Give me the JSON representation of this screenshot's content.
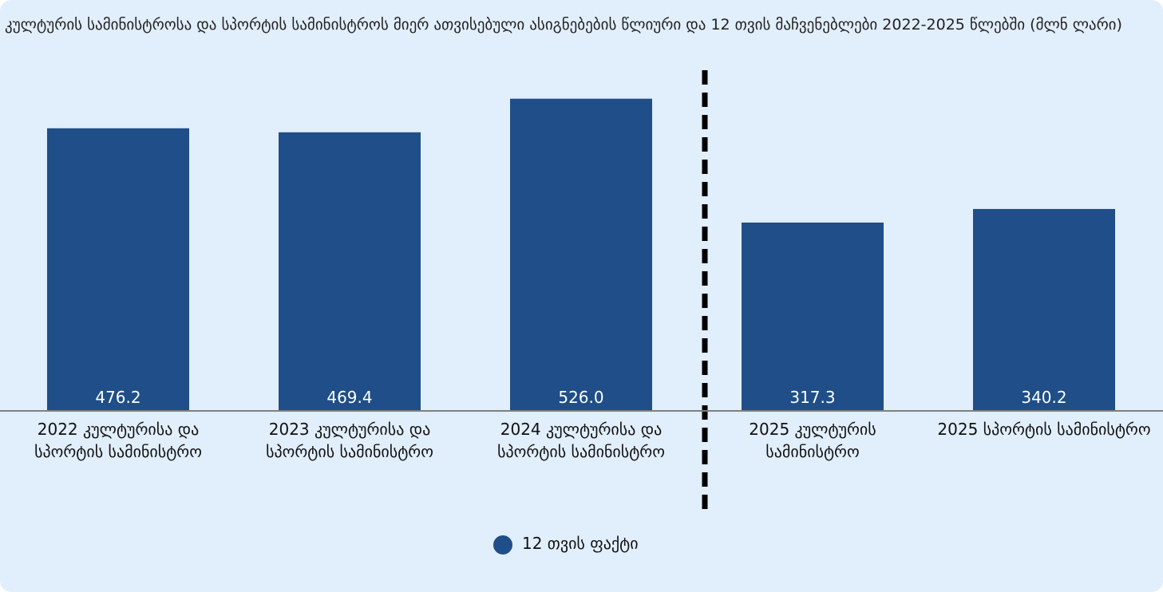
{
  "chart_data": {
    "type": "bar",
    "title": "კულტურის სამინისტროსა და სპორტის სამინისტროს მიერ ათვისებული ასიგნებების წლიური და 12 თვის მაჩვენებლები 2022-2025 წლებში (მლნ ლარი)",
    "categories": [
      "2022 კულტურისა და სპორტის სამინისტრო",
      "2023 კულტურისა და სპორტის სამინისტრო",
      "2024 კულტურისა და სპორტის სამინისტრო",
      "2025 კულტურის სამინისტრო",
      "2025 სპორტის სამინისტრო"
    ],
    "series": [
      {
        "name": "12 თვის ფაქტი",
        "color": "#1f4e89",
        "values": [
          476.2,
          469.4,
          526,
          317.3,
          340.2
        ],
        "value_labels": [
          "476.2",
          "469.4",
          "526.0",
          "317.3",
          "340.2"
        ]
      }
    ],
    "ylim": [
      0,
      570
    ],
    "legend": "bottom"
  }
}
